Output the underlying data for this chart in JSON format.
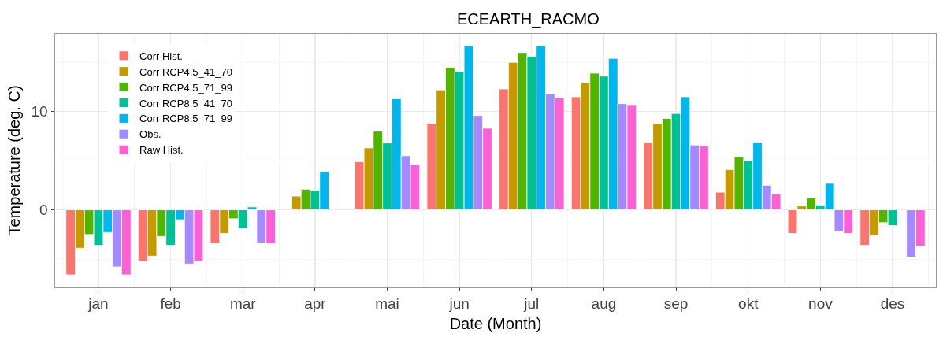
{
  "chart_data": {
    "type": "bar",
    "title": "ECEARTH_RACMO",
    "xlabel": "Date (Month)",
    "ylabel": "Temperature (deg. C)",
    "categories": [
      "jan",
      "feb",
      "mar",
      "apr",
      "mai",
      "jun",
      "jul",
      "aug",
      "sep",
      "okt",
      "nov",
      "des"
    ],
    "series": [
      {
        "name": "Corr Hist.",
        "color": "#f8766d",
        "values": [
          -6.6,
          -5.2,
          -3.4,
          null,
          4.9,
          8.8,
          12.3,
          11.5,
          6.9,
          1.8,
          -2.4,
          -3.6
        ]
      },
      {
        "name": "Corr RCP4.5_41_70",
        "color": "#c49a00",
        "values": [
          -3.9,
          -4.7,
          -2.4,
          1.4,
          6.3,
          12.2,
          15.0,
          12.9,
          8.8,
          4.1,
          0.4,
          -2.6
        ]
      },
      {
        "name": "Corr RCP4.5_71_99",
        "color": "#53b400",
        "values": [
          -2.5,
          -2.7,
          -0.9,
          2.1,
          8.0,
          14.5,
          16.0,
          13.9,
          9.3,
          5.4,
          1.2,
          -1.3
        ]
      },
      {
        "name": "Corr RCP8.5_41_70",
        "color": "#00c094",
        "values": [
          -3.6,
          -3.6,
          -1.9,
          2.0,
          6.8,
          14.1,
          15.6,
          13.6,
          9.8,
          5.0,
          0.5,
          -1.6
        ]
      },
      {
        "name": "Corr RCP8.5_71_99",
        "color": "#00b6eb",
        "values": [
          -2.3,
          -1.0,
          0.3,
          3.9,
          11.3,
          16.7,
          16.7,
          15.4,
          11.5,
          6.9,
          2.7,
          null
        ]
      },
      {
        "name": "Obs.",
        "color": "#a58aff",
        "values": [
          -5.8,
          -5.5,
          -3.4,
          null,
          5.5,
          9.6,
          11.8,
          10.8,
          6.6,
          2.5,
          -2.2,
          -4.8
        ]
      },
      {
        "name": "Raw Hist.",
        "color": "#fb61d7",
        "values": [
          -6.6,
          -5.2,
          -3.4,
          null,
          4.6,
          8.3,
          11.4,
          10.7,
          6.5,
          1.6,
          -2.4,
          -3.7
        ]
      }
    ],
    "ylim": [
      -7.8,
      17.9
    ],
    "yticks": [
      0,
      10
    ],
    "grid": true,
    "legend": "top left"
  }
}
